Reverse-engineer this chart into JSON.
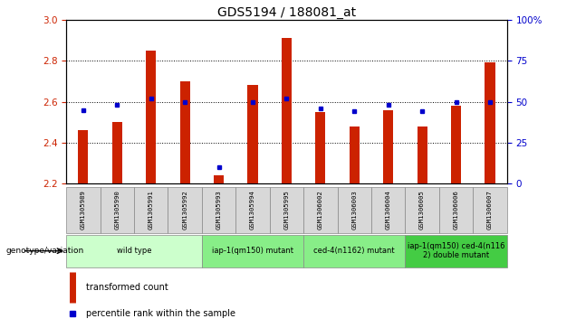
{
  "title": "GDS5194 / 188081_at",
  "samples": [
    "GSM1305989",
    "GSM1305990",
    "GSM1305991",
    "GSM1305992",
    "GSM1305993",
    "GSM1305994",
    "GSM1305995",
    "GSM1306002",
    "GSM1306003",
    "GSM1306004",
    "GSM1306005",
    "GSM1306006",
    "GSM1306007"
  ],
  "transformed_count": [
    2.46,
    2.5,
    2.85,
    2.7,
    2.24,
    2.68,
    2.91,
    2.55,
    2.48,
    2.56,
    2.48,
    2.58,
    2.79
  ],
  "percentile_rank": [
    45,
    48,
    52,
    50,
    10,
    50,
    52,
    46,
    44,
    48,
    44,
    50,
    50
  ],
  "ylim_left": [
    2.2,
    3.0
  ],
  "ylim_right": [
    0,
    100
  ],
  "yticks_left": [
    2.2,
    2.4,
    2.6,
    2.8,
    3.0
  ],
  "yticks_right": [
    0,
    25,
    50,
    75,
    100
  ],
  "bar_color": "#cc2200",
  "dot_color": "#0000cc",
  "groups": [
    {
      "label": "wild type",
      "start": 0,
      "end": 3,
      "color": "#ccffcc"
    },
    {
      "label": "iap-1(qm150) mutant",
      "start": 4,
      "end": 6,
      "color": "#88ee88"
    },
    {
      "label": "ced-4(n1162) mutant",
      "start": 7,
      "end": 9,
      "color": "#88ee88"
    },
    {
      "label": "iap-1(qm150) ced-4(n116\n2) double mutant",
      "start": 10,
      "end": 12,
      "color": "#44cc44"
    }
  ],
  "bar_width": 0.3,
  "genotype_label": "genotype/variation",
  "ylabel_left_color": "#cc2200",
  "ylabel_right_color": "#0000cc",
  "grid_ticks": [
    2.4,
    2.6,
    2.8
  ],
  "bg_color": "#ffffff"
}
